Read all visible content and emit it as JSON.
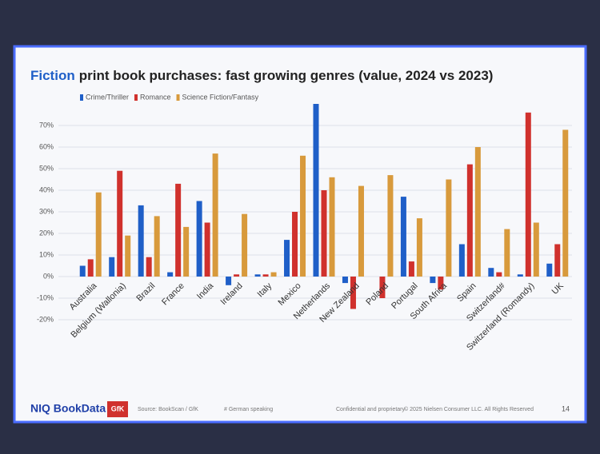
{
  "chart_data": {
    "type": "bar",
    "title_lead": "Fiction",
    "title": "print book purchases: fast growing genres (value, 2024 vs 2023)",
    "categories": [
      "Australia",
      "Belgium (Wallonia)",
      "Brazil",
      "France",
      "India",
      "Ireland",
      "Italy",
      "Mexico",
      "Netherlands",
      "New Zealand",
      "Poland",
      "Portugal",
      "South Africa",
      "Spain",
      "Switzerland#",
      "Switzerland (Romandy)",
      "UK"
    ],
    "series": [
      {
        "name": "Crime/Thriller",
        "color": "#1f5fc8",
        "values": [
          5,
          9,
          33,
          2,
          35,
          -4,
          1,
          17,
          80,
          -3,
          0,
          37,
          -3,
          15,
          4,
          1,
          6
        ]
      },
      {
        "name": "Romance",
        "color": "#d0312d",
        "values": [
          8,
          49,
          9,
          43,
          25,
          1,
          1,
          30,
          40,
          -15,
          -10,
          7,
          -6,
          52,
          2,
          76,
          15
        ]
      },
      {
        "name": "Science Fiction/Fantasy",
        "color": "#d89a3c",
        "values": [
          39,
          19,
          28,
          23,
          57,
          29,
          2,
          56,
          46,
          42,
          47,
          27,
          45,
          60,
          22,
          25,
          68
        ]
      }
    ],
    "ylim": [
      -20,
      80
    ],
    "yticks": [
      {
        "value": -20,
        "label": "-20%"
      },
      {
        "value": -10,
        "label": "-10%"
      },
      {
        "value": 0,
        "label": "0%"
      },
      {
        "value": 10,
        "label": "10%"
      },
      {
        "value": 20,
        "label": "20%"
      },
      {
        "value": 30,
        "label": "30%"
      },
      {
        "value": 40,
        "label": "40%"
      },
      {
        "value": 50,
        "label": "50%"
      },
      {
        "value": 60,
        "label": "60%"
      },
      {
        "value": 70,
        "label": "70%"
      }
    ],
    "grid": true
  },
  "footer": {
    "brand": "NIQ BookData",
    "partner": "GfK",
    "source": "Source: BookScan / GfK",
    "note": "# German speaking",
    "confidential": "Confidential and proprietary",
    "copyright": "© 2025 Nielsen Consumer LLC. All Rights Reserved",
    "page": "14"
  }
}
